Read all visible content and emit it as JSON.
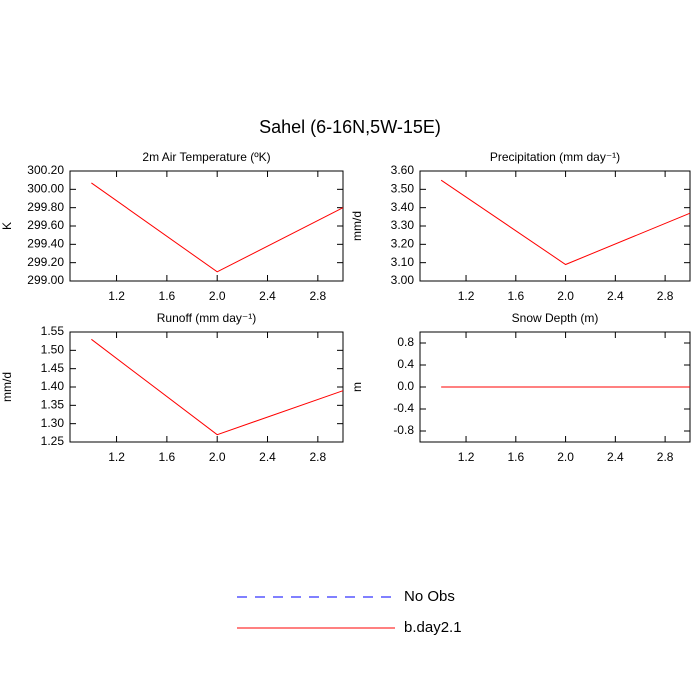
{
  "title": "Sahel (6-16N,5W-15E)",
  "legend": [
    {
      "name": "No Obs",
      "color": "#0000ff",
      "dash": true
    },
    {
      "name": "b.day2.1",
      "color": "#ff0000",
      "dash": false
    }
  ],
  "chart_data": [
    {
      "type": "line",
      "title": "2m Air Temperature (ºK)",
      "ylabel": "K",
      "x": [
        1,
        2,
        3
      ],
      "values": [
        300.07,
        299.1,
        299.8
      ],
      "color": "#ff0000",
      "xlim": [
        0.83,
        3.0
      ],
      "xticks": [
        1.2,
        1.6,
        {
          "value": 2,
          "label": "2.0"
        },
        2.4,
        2.8
      ],
      "ylim": [
        299.0,
        300.2
      ],
      "yticks": [
        {
          "value": 299.0,
          "label": "299.00"
        },
        {
          "value": 299.2,
          "label": "299.20"
        },
        {
          "value": 299.4,
          "label": "299.40"
        },
        {
          "value": 299.6,
          "label": "299.60"
        },
        {
          "value": 299.8,
          "label": "299.80"
        },
        {
          "value": 300.0,
          "label": "300.00"
        },
        {
          "value": 300.2,
          "label": "300.20"
        }
      ]
    },
    {
      "type": "line",
      "title": "Precipitation (mm day⁻¹)",
      "ylabel": "mm/d",
      "x": [
        1,
        2,
        3
      ],
      "values": [
        3.55,
        3.09,
        3.37
      ],
      "color": "#ff0000",
      "xlim": [
        0.83,
        3.0
      ],
      "xticks": [
        1.2,
        1.6,
        {
          "value": 2,
          "label": "2.0"
        },
        2.4,
        2.8
      ],
      "ylim": [
        3.0,
        3.6
      ],
      "yticks": [
        {
          "value": 3.0,
          "label": "3.00"
        },
        {
          "value": 3.1,
          "label": "3.10"
        },
        {
          "value": 3.2,
          "label": "3.20"
        },
        {
          "value": 3.3,
          "label": "3.30"
        },
        {
          "value": 3.4,
          "label": "3.40"
        },
        {
          "value": 3.5,
          "label": "3.50"
        },
        {
          "value": 3.6,
          "label": "3.60"
        }
      ]
    },
    {
      "type": "line",
      "title": "Runoff (mm day⁻¹)",
      "ylabel": "mm/d",
      "x": [
        1,
        2,
        3
      ],
      "values": [
        1.53,
        1.27,
        1.39
      ],
      "color": "#ff0000",
      "xlim": [
        0.83,
        3.0
      ],
      "xticks": [
        1.2,
        1.6,
        {
          "value": 2,
          "label": "2.0"
        },
        2.4,
        2.8
      ],
      "ylim": [
        1.25,
        1.55
      ],
      "yticks": [
        1.25,
        {
          "value": 1.3,
          "label": "1.30"
        },
        1.35,
        {
          "value": 1.4,
          "label": "1.40"
        },
        1.45,
        {
          "value": 1.5,
          "label": "1.50"
        },
        1.55
      ]
    },
    {
      "type": "line",
      "title": "Snow Depth (m)",
      "ylabel": "m",
      "x": [
        1,
        2,
        3
      ],
      "values": [
        0,
        0,
        0
      ],
      "color": "#ff0000",
      "xlim": [
        0.83,
        3.0
      ],
      "xticks": [
        1.2,
        1.6,
        {
          "value": 2,
          "label": "2.0"
        },
        2.4,
        2.8
      ],
      "ylim": [
        -1,
        1
      ],
      "yticks": [
        -0.8,
        -0.4,
        {
          "value": 0,
          "label": "0.0"
        },
        0.4,
        0.8
      ]
    }
  ]
}
